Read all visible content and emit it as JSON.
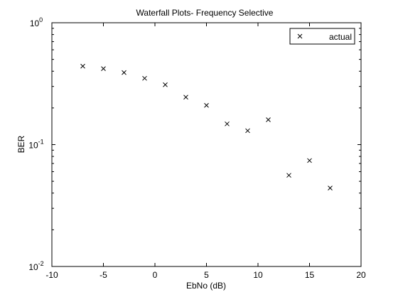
{
  "chart_data": {
    "type": "scatter",
    "title": "Waterfall Plots- Frequency Selective",
    "xlabel": "EbNo (dB)",
    "ylabel": "BER",
    "xlim": [
      -10,
      20
    ],
    "ylim": [
      0.01,
      1
    ],
    "yscale": "log",
    "grid": false,
    "legend_position": "top-right",
    "x_ticks": [
      "-10",
      "-5",
      "0",
      "5",
      "10",
      "15",
      "20"
    ],
    "x_tick_values": [
      -10,
      -5,
      0,
      5,
      10,
      15,
      20
    ],
    "y_tick_values": [
      0.01,
      0.1,
      1
    ],
    "y_tick_bases": [
      "10",
      "10",
      "10"
    ],
    "y_tick_exponents": [
      "-2",
      "-1",
      "0"
    ],
    "series": [
      {
        "name": "actual",
        "marker": "x",
        "color": "#000000",
        "x": [
          -7,
          -5,
          -3,
          -1,
          1,
          3,
          5,
          7,
          9,
          11,
          13,
          15,
          17
        ],
        "y": [
          0.44,
          0.42,
          0.39,
          0.35,
          0.31,
          0.245,
          0.21,
          0.148,
          0.13,
          0.16,
          0.056,
          0.074,
          0.044
        ]
      }
    ]
  }
}
